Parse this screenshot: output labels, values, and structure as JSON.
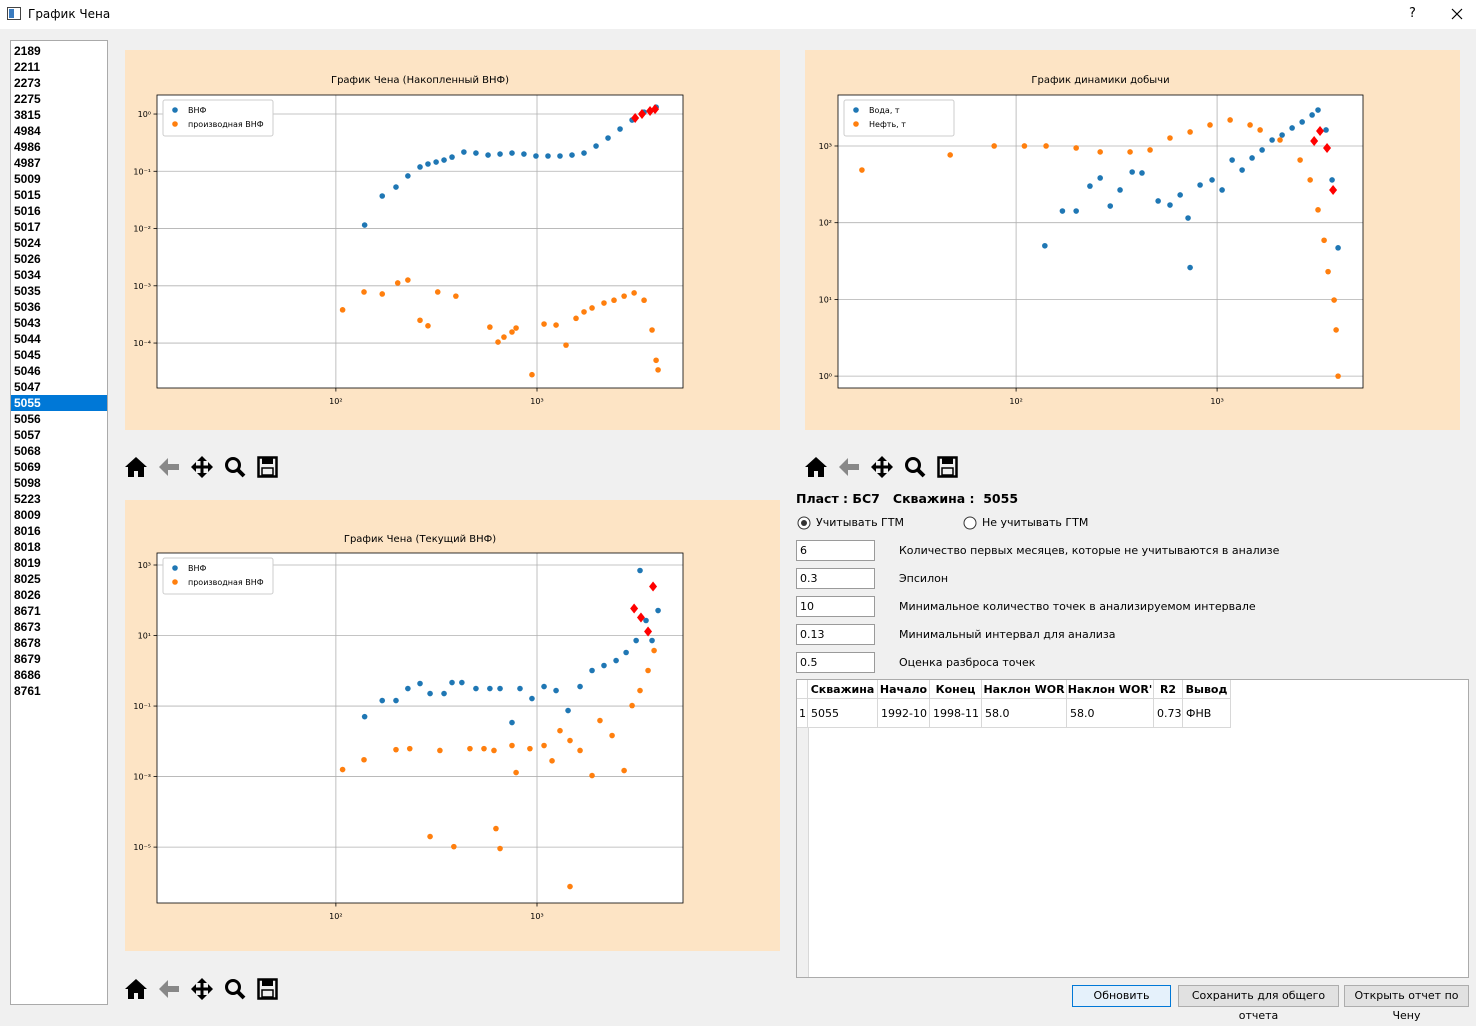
{
  "window": {
    "title": "График Чена",
    "help": "?"
  },
  "well_list": {
    "items": [
      "2189",
      "2211",
      "2273",
      "2275",
      "3815",
      "4984",
      "4986",
      "4987",
      "5009",
      "5015",
      "5016",
      "5017",
      "5024",
      "5026",
      "5034",
      "5035",
      "5036",
      "5043",
      "5044",
      "5045",
      "5046",
      "5047",
      "5055",
      "5056",
      "5057",
      "5068",
      "5069",
      "5098",
      "5223",
      "8009",
      "8016",
      "8018",
      "8019",
      "8025",
      "8026",
      "8671",
      "8673",
      "8678",
      "8679",
      "8686",
      "8761"
    ],
    "selected": 22
  },
  "charts": [
    {
      "type": "scatter",
      "title": "График Чена  (Накопленный ВНФ)",
      "xscale": "log",
      "yscale": "log",
      "grid": true,
      "legend": "upper left",
      "xlim": [
        12.9,
        5320
      ],
      "ylim": [
        1.64e-05,
        2.15
      ],
      "xticks": [
        {
          "value": 100,
          "label": "10²"
        },
        {
          "value": 1000,
          "label": "10³"
        }
      ],
      "yticks": [
        {
          "value": 0.0001,
          "label": "10⁻⁴"
        },
        {
          "value": 0.001,
          "label": "10⁻³"
        },
        {
          "value": 0.01,
          "label": "10⁻²"
        },
        {
          "value": 0.1,
          "label": "10⁻¹"
        },
        {
          "value": 1,
          "label": "10⁰"
        }
      ],
      "series": [
        {
          "name": "ВНФ",
          "color": "#1f77b4",
          "marker": "circle",
          "x": [
            139,
            170,
            199,
            228,
            262,
            287,
            315,
            345,
            378,
            433,
            497,
            571,
            655,
            751,
            861,
            988,
            1134,
            1301,
            1493,
            1713,
            1966,
            2255,
            2588,
            2970,
            3407,
            3910
          ],
          "y": [
            0.0115,
            0.037,
            0.053,
            0.083,
            0.119,
            0.134,
            0.145,
            0.157,
            0.177,
            0.217,
            0.208,
            0.192,
            0.2,
            0.208,
            0.2,
            0.185,
            0.185,
            0.185,
            0.192,
            0.208,
            0.276,
            0.381,
            0.547,
            0.786,
            1.08,
            1.32
          ]
        },
        {
          "name": "производная ВНФ",
          "color": "#ff7f0e",
          "marker": "circle",
          "x": [
            108,
            138,
            170,
            203,
            228,
            262,
            287,
            321,
            395,
            583,
            640,
            685,
            751,
            787,
            944,
            1084,
            1244,
            1394,
            1563,
            1713,
            1878,
            2153,
            2415,
            2711,
            3040,
            3407,
            3733,
            3910,
            3999
          ],
          "y": [
            0.00038,
            0.00078,
            0.00072,
            0.00112,
            0.00126,
            0.00025,
            0.0002,
            0.00078,
            0.00066,
            0.00019,
            0.000104,
            0.000127,
            0.000156,
            0.000183,
            2.8e-05,
            0.000215,
            0.000206,
            9.2e-05,
            0.00027,
            0.00035,
            0.00041,
            0.0005,
            0.00056,
            0.00066,
            0.00075,
            0.00056,
            0.000169,
            5e-05,
            3.4e-05
          ]
        },
        {
          "color": "#ff0000",
          "marker": "diamond",
          "x": [
            3076,
            3327,
            3648,
            3864
          ],
          "y": [
            0.851,
            1.0,
            1.13,
            1.22
          ]
        }
      ]
    },
    {
      "type": "scatter",
      "title": "График динамики добычи",
      "xscale": "log",
      "yscale": "log",
      "grid": true,
      "legend": "upper left",
      "xlim": [
        13.0,
        5320
      ],
      "ylim": [
        0.7,
        4620
      ],
      "xticks": [
        {
          "value": 100,
          "label": "10²"
        },
        {
          "value": 1000,
          "label": "10³"
        }
      ],
      "yticks": [
        {
          "value": 1,
          "label": "10⁰"
        },
        {
          "value": 10,
          "label": "10¹"
        },
        {
          "value": 100,
          "label": "10²"
        },
        {
          "value": 1000,
          "label": "10³"
        }
      ],
      "series": [
        {
          "name": "Вода, т",
          "color": "#1f77b4",
          "marker": "circle",
          "x": [
            139,
            170,
            199,
            233,
            262,
            294,
            329,
            378,
            423,
            509,
            583,
            655,
            717,
            734,
            823,
            944,
            1059,
            1188,
            1332,
            1493,
            1675,
            1878,
            2106,
            2362,
            2650,
            2970,
            3178,
            3484,
            3733,
            3999
          ],
          "y": [
            50,
            142,
            142,
            300,
            383,
            165,
            267,
            458,
            445,
            192,
            170,
            230,
            115,
            26,
            310,
            361,
            267,
            656,
            486,
            698,
            887,
            1197,
            1390,
            1717,
            2056,
            2537,
            2944,
            1617,
            361,
            47
          ]
        },
        {
          "name": "Нефть, т",
          "color": "#ff7f0e",
          "marker": "circle",
          "x": [
            17.1,
            47,
            77.8,
            110,
            141,
            199,
            262,
            369,
            464,
            583,
            734,
            922,
            1161,
            1459,
            1637,
            2056,
            2588,
            2904,
            3178,
            3407,
            3566,
            3821,
            3910,
            3999
          ],
          "y": [
            486,
            764,
            1000,
            1000,
            1000,
            942,
            836,
            836,
            887,
            1271,
            1523,
            1879,
            2184,
            1879,
            1617,
            1197,
            656,
            361,
            147,
            59,
            23,
            9.8,
            4.0,
            1.0
          ]
        },
        {
          "color": "#ff0000",
          "marker": "diamond",
          "x": [
            3040,
            3252,
            3524,
            3776
          ],
          "y": [
            1162,
            1570,
            942,
            267
          ]
        }
      ]
    },
    {
      "type": "scatter",
      "title": "График Чена  (Текущий ВНФ)",
      "xscale": "log",
      "yscale": "log",
      "grid": true,
      "legend": "upper left",
      "xlim": [
        12.9,
        5320
      ],
      "ylim": [
        2.6e-07,
        2190
      ],
      "xticks": [
        {
          "value": 100,
          "label": "10²"
        },
        {
          "value": 1000,
          "label": "10³"
        }
      ],
      "yticks": [
        {
          "value": 1e-05,
          "label": "10⁻⁵"
        },
        {
          "value": 0.001,
          "label": "10⁻³"
        },
        {
          "value": 0.1,
          "label": "10⁻¹"
        },
        {
          "value": 10,
          "label": "10¹"
        },
        {
          "value": 1000,
          "label": "10³"
        }
      ],
      "series": [
        {
          "name": "ВНФ",
          "color": "#1f77b4",
          "marker": "circle",
          "x": [
            139,
            170,
            199,
            228,
            262,
            294,
            345,
            378,
            423,
            497,
            583,
            655,
            751,
            823,
            944,
            1084,
            1244,
            1427,
            1637,
            1878,
            2153,
            2473,
            2774,
            3111,
            3252,
            3484,
            3733,
            3999
          ],
          "y": [
            0.05,
            0.143,
            0.143,
            0.313,
            0.435,
            0.226,
            0.226,
            0.464,
            0.464,
            0.313,
            0.313,
            0.313,
            0.034,
            0.313,
            0.163,
            0.357,
            0.275,
            0.0745,
            0.357,
            1.02,
            1.41,
            1.95,
            3.3,
            7.21,
            698,
            26.7,
            7.21,
            51.2
          ]
        },
        {
          "name": "производная ВНФ",
          "color": "#ff7f0e",
          "marker": "circle",
          "x": [
            108,
            138,
            199,
            233,
            329,
            464,
            545,
            611,
            751,
            787,
            922,
            1084,
            1188,
            1301,
            1459,
            1637,
            1878,
            2056,
            2362,
            2711,
            2970,
            3252,
            3566,
            3821,
            294,
            386,
            625,
            655,
            1459
          ],
          "y": [
            0.00158,
            0.003,
            0.0058,
            0.0062,
            0.0055,
            0.0062,
            0.0062,
            0.0055,
            0.0076,
            0.0013,
            0.0062,
            0.0076,
            0.0028,
            0.02,
            0.0105,
            0.0055,
            0.00107,
            0.0388,
            0.0146,
            0.00148,
            0.103,
            0.275,
            1.02,
            3.75,
            1.99e-05,
            1.03e-05,
            3.35e-05,
            9.1e-06,
            7.6e-07
          ]
        },
        {
          "color": "#ff0000",
          "marker": "diamond",
          "x": [
            3040,
            3288,
            3566,
            3776
          ],
          "y": [
            58.4,
            32.4,
            13.0,
            245
          ]
        }
      ]
    }
  ],
  "well_info": {
    "layer_label": "Пласт :",
    "layer": "БС7",
    "well_label": "Скважина :",
    "well": "5055"
  },
  "options": [
    {
      "label": "Учитывать ГТМ",
      "checked": true
    },
    {
      "label": "Не учитывать ГТМ",
      "checked": false
    }
  ],
  "params": [
    {
      "value": "6",
      "label": "Количество первых месяцев, которые не учитываются в анализе"
    },
    {
      "value": "0.3",
      "label": "Эпсилон"
    },
    {
      "value": "10",
      "label": "Минимальное количество точек в анализируемом интервале"
    },
    {
      "value": "0.13",
      "label": "Минимальный интервал для анализа"
    },
    {
      "value": "0.5",
      "label": "Оценка разброса точек"
    }
  ],
  "table": {
    "columns": [
      "Скважина",
      "Начало",
      "Конец",
      "Наклон WOR",
      "Наклон WOR'",
      "R2",
      "Вывод"
    ],
    "rows": [
      {
        "index": 1,
        "cells": [
          "5055",
          "1992-10",
          "1998-11",
          "58.0",
          "58.0",
          "0.73",
          "ФНВ"
        ]
      }
    ]
  },
  "buttons": [
    "Обновить",
    "Сохранить для общего отчета",
    "Открыть отчет по Чену"
  ]
}
